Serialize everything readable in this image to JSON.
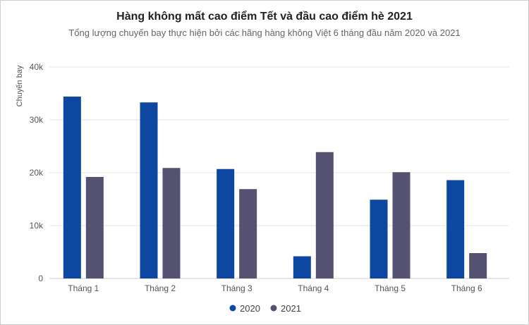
{
  "chart_data": {
    "type": "bar",
    "title": "Hàng không mất cao điểm Tết và đầu cao điểm hè 2021",
    "subtitle": "Tổng lượng chuyến bay thực hiện bởi các hãng hàng không Việt 6 tháng đầu năm 2020 và 2021",
    "xlabel": "",
    "ylabel": "Chuyến bay",
    "ylim": [
      0,
      40000
    ],
    "yticks": [
      0,
      10000,
      20000,
      30000,
      40000
    ],
    "ytick_labels": [
      "0",
      "10k",
      "20k",
      "30k",
      "40k"
    ],
    "categories": [
      "Tháng 1",
      "Tháng 2",
      "Tháng 3",
      "Tháng 4",
      "Tháng 5",
      "Tháng 6"
    ],
    "series": [
      {
        "name": "2020",
        "color": "#0d47a1",
        "values": [
          34400,
          33300,
          20700,
          4200,
          14900,
          18600
        ]
      },
      {
        "name": "2021",
        "color": "#545270",
        "values": [
          19200,
          20900,
          16900,
          23900,
          20100,
          4800
        ]
      }
    ],
    "grid": true,
    "legend": "bottom-center"
  }
}
